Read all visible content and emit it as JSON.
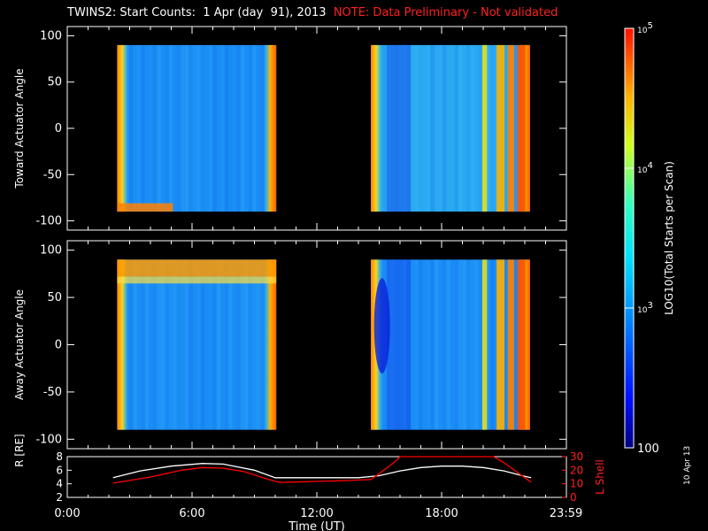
{
  "title": {
    "main": "TWINS2: Start Counts:  1 Apr (day  91), 2013",
    "note": "NOTE: Data Preliminary - Not validated"
  },
  "date_stamp": "10 Apr 13",
  "colors": {
    "background": "#000000",
    "axes": "#ffffff",
    "note": "#ff2020",
    "r_line": "#ffffff",
    "l_shell_line": "#ff0000"
  },
  "chart_data": [
    {
      "type": "heatmap",
      "name": "toward-panel",
      "ylabel": "Toward Actuator Angle",
      "ylim": [
        -110,
        110
      ],
      "yticks": [
        "100",
        "50",
        "0",
        "-50",
        "-100"
      ],
      "ytick_values": [
        100,
        50,
        0,
        -50,
        -100
      ],
      "xlim": [
        0,
        24
      ],
      "colormap": "rainbow",
      "blocks": [
        {
          "t_start": 2.4,
          "t_end": 10.05,
          "angle_min": -90,
          "angle_max": 90,
          "log10_level": 3.1
        },
        {
          "t_start": 14.6,
          "t_end": 22.25,
          "angle_min": -90,
          "angle_max": 90,
          "log10_level": 3.2
        }
      ]
    },
    {
      "type": "heatmap",
      "name": "away-panel",
      "ylabel": "Away Actuator Angle",
      "ylim": [
        -110,
        110
      ],
      "yticks": [
        "100",
        "50",
        "0",
        "-50",
        "-100"
      ],
      "ytick_values": [
        100,
        50,
        0,
        -50,
        -100
      ],
      "xlim": [
        0,
        24
      ],
      "colormap": "rainbow",
      "blocks": [
        {
          "t_start": 2.4,
          "t_end": 10.05,
          "angle_min": -90,
          "angle_max": 90,
          "log10_level": 3.1
        },
        {
          "t_start": 14.6,
          "t_end": 22.25,
          "angle_min": -90,
          "angle_max": 90,
          "log10_level": 3.0
        }
      ]
    },
    {
      "type": "line",
      "name": "orbit-panel",
      "ylabel_left": "R [RE]",
      "ylabel_right": "L Shell",
      "xlabel": "Time (UT)",
      "xticks": [
        "0:00",
        "6:00",
        "12:00",
        "18:00",
        "23:59"
      ],
      "xtick_values": [
        0,
        6,
        12,
        18,
        23.98
      ],
      "xlim": [
        0,
        24
      ],
      "left_ylim": [
        2,
        8
      ],
      "left_yticks": [
        "8",
        "6",
        "4",
        "2"
      ],
      "left_ytick_values": [
        8,
        6,
        4,
        2
      ],
      "right_ylim": [
        0,
        30
      ],
      "right_yticks": [
        "30",
        "20",
        "10",
        "0"
      ],
      "right_ytick_values": [
        30,
        20,
        10,
        0
      ],
      "series": [
        {
          "axis": "left",
          "x": [
            2.2,
            3.5,
            5.0,
            6.5,
            7.5,
            9.0,
            10.0,
            11.0,
            12.0,
            13.0,
            14.0,
            15.0,
            16.0,
            17.0,
            18.0,
            19.0,
            20.0,
            21.0,
            22.0,
            22.3
          ],
          "y": [
            4.9,
            5.9,
            6.6,
            7.0,
            6.9,
            6.0,
            4.9,
            4.9,
            4.9,
            4.9,
            4.9,
            5.2,
            5.9,
            6.4,
            6.6,
            6.6,
            6.4,
            5.9,
            5.1,
            4.9
          ]
        },
        {
          "axis": "right",
          "x": [
            2.2,
            4.0,
            5.5,
            6.5,
            7.5,
            8.5,
            9.5,
            10.2,
            11.0,
            12.0,
            13.0,
            14.0,
            14.6,
            15.0,
            15.7,
            16.0,
            20.5,
            21.0,
            22.0,
            22.3
          ],
          "y": [
            10.5,
            15,
            20,
            22,
            21.5,
            19,
            14,
            11,
            11.3,
            11.8,
            12.2,
            12.8,
            13.2,
            17.5,
            25.5,
            30,
            30,
            25.5,
            14.5,
            11.2
          ]
        }
      ]
    },
    {
      "type": "heatmap",
      "name": "colorbar",
      "label": "LOG10(Total Starts per Scan)",
      "tick_labels": [
        "10",
        "5",
        "10",
        "4",
        "10",
        "3",
        "100"
      ],
      "tick_values": [
        100000,
        10000,
        1000,
        100
      ],
      "range": [
        100,
        100000
      ],
      "scale": "log"
    }
  ]
}
